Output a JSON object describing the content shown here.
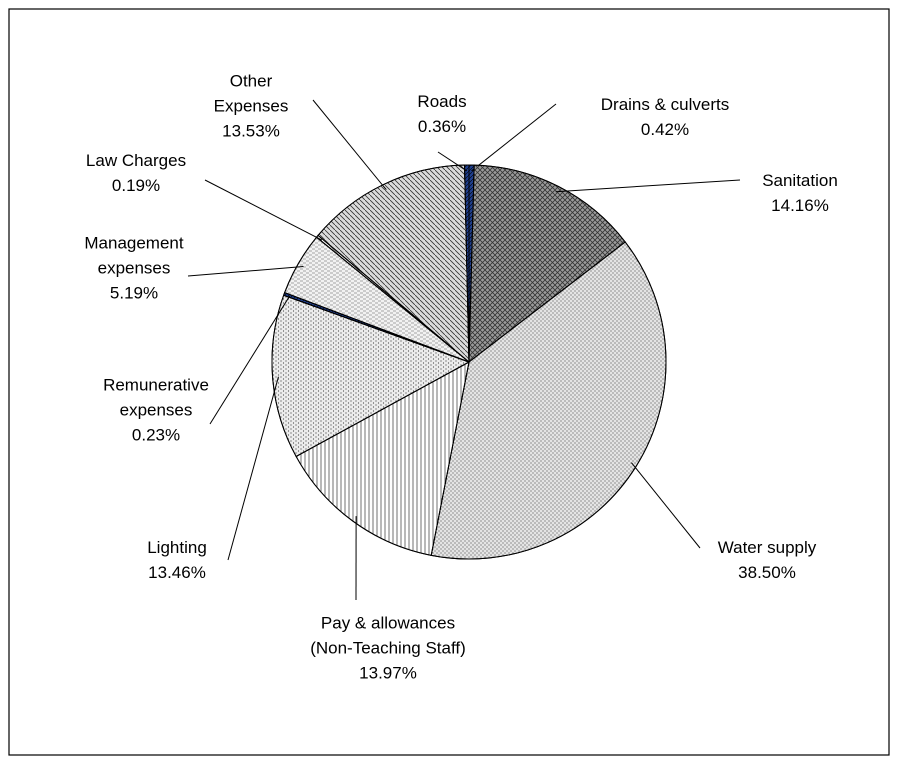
{
  "chart_data": {
    "type": "pie",
    "categories": [
      "Drains & culverts",
      "Sanitation",
      "Water supply",
      "Pay & allowances (Non-Teaching Staff)",
      "Lighting",
      "Remunerative expenses",
      "Management expenses",
      "Law Charges",
      "Other Expenses",
      "Roads"
    ],
    "values": [
      0.42,
      14.16,
      38.5,
      13.97,
      13.46,
      0.23,
      5.19,
      0.19,
      13.53,
      0.36
    ],
    "value_labels": [
      "0.42%",
      "14.16%",
      "38.50%",
      "13.97%",
      "13.46%",
      "0.23%",
      "5.19%",
      "0.19%",
      "13.53%",
      "0.36%"
    ],
    "colors": [
      "#1f3f8f",
      "#9a9a9a",
      "#e4e4e4",
      "#ffffff",
      "#ececec",
      "#1f3f8f",
      "#f2f2f2",
      "#ffffff",
      "#dcdcdc",
      "#1f3f8f"
    ]
  }
}
